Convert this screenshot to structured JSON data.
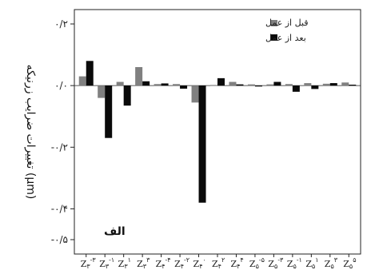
{
  "chart_data": {
    "type": "bar",
    "ylabel": "تغییرات ضرایب زرنیکه (µm)",
    "panel_label": "الف",
    "ylim": [
      -0.5,
      0.2
    ],
    "yticks": [
      0.2,
      0.0,
      -0.2,
      -0.4,
      -0.5
    ],
    "ytick_labels": [
      "۰/۲",
      "۰/۰",
      "-۰/۲",
      "-۰/۴",
      "-۰/۵"
    ],
    "legend_position": "top-right",
    "categories": [
      {
        "base": "Z",
        "sub": "۳",
        "sup": "-۳"
      },
      {
        "base": "Z",
        "sub": "۳",
        "sup": "-۱"
      },
      {
        "base": "Z",
        "sub": "۳",
        "sup": "۱"
      },
      {
        "base": "Z",
        "sub": "۳",
        "sup": "۳"
      },
      {
        "base": "Z",
        "sub": "۴",
        "sup": "-۴"
      },
      {
        "base": "Z",
        "sub": "۴",
        "sup": "-۲"
      },
      {
        "base": "Z",
        "sub": "۴",
        "sup": "۰"
      },
      {
        "base": "Z",
        "sub": "۴",
        "sup": "۲"
      },
      {
        "base": "Z",
        "sub": "۴",
        "sup": "۴"
      },
      {
        "base": "Z",
        "sub": "۵",
        "sup": "-۵"
      },
      {
        "base": "Z",
        "sub": "۵",
        "sup": "-۳"
      },
      {
        "base": "Z",
        "sub": "۵",
        "sup": "-۱"
      },
      {
        "base": "Z",
        "sub": "۵",
        "sup": "۱"
      },
      {
        "base": "Z",
        "sub": "۵",
        "sup": "۳"
      },
      {
        "base": "Z",
        "sub": "۵",
        "sup": "۵"
      }
    ],
    "series": [
      {
        "name": "قبل از عمل",
        "color": "#808080",
        "values": [
          0.03,
          -0.04,
          0.012,
          0.06,
          0.005,
          0.005,
          -0.055,
          0.002,
          0.012,
          0.004,
          0.004,
          0.005,
          0.008,
          0.006,
          0.01
        ]
      },
      {
        "name": "بعد از عمل",
        "color": "#0a0a0a",
        "values": [
          0.08,
          -0.17,
          -0.065,
          0.014,
          0.007,
          -0.01,
          -0.38,
          0.024,
          0.004,
          -0.003,
          0.012,
          -0.02,
          -0.011,
          0.008,
          0.003
        ]
      }
    ]
  }
}
